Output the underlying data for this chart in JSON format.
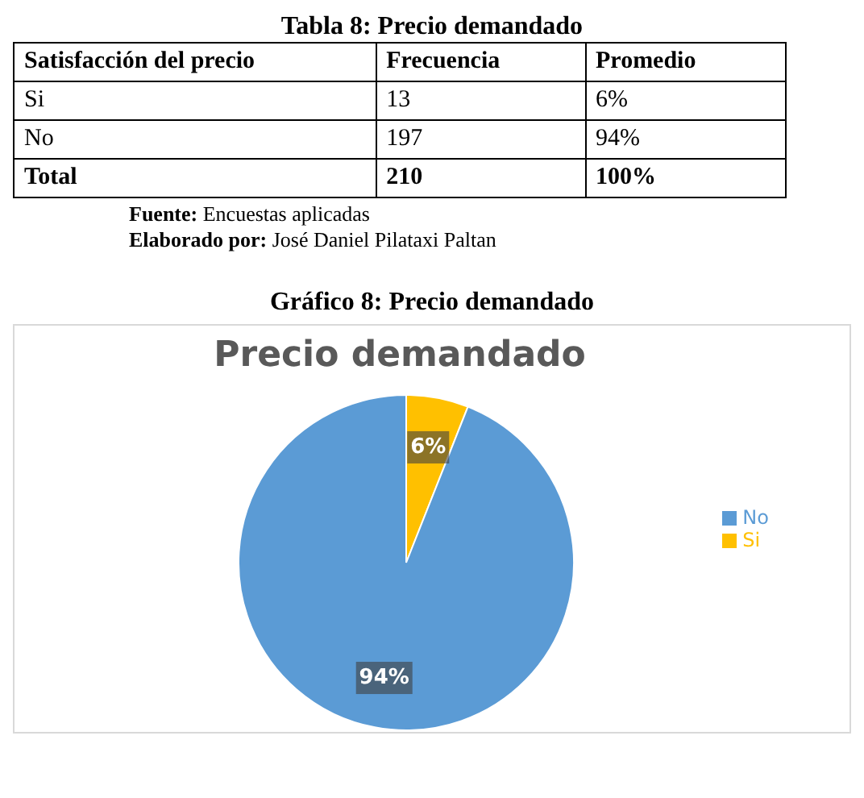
{
  "chart_data": [
    {
      "type": "other",
      "title": "Tabla 8: Precio demandado",
      "annotations": [
        "Satisfacción del precio",
        "Frecuencia",
        "Promedio",
        "Si",
        "13",
        "6%",
        "No",
        "197",
        "94%",
        "Total",
        "210",
        "100%",
        "Fuente: Encuestas aplicadas",
        "Elaborado por: José Daniel Pilataxi Paltan"
      ]
    },
    {
      "type": "pie",
      "title": "Precio demandado",
      "annotations": [
        "Gráfico 8: Precio demandado"
      ],
      "categories": [
        "Si",
        "No"
      ],
      "values": [
        6,
        94
      ],
      "colors": [
        "#ffc000",
        "#5b9bd5"
      ],
      "value_labels": [
        "6%",
        "94%"
      ],
      "legend": "right"
    }
  ]
}
